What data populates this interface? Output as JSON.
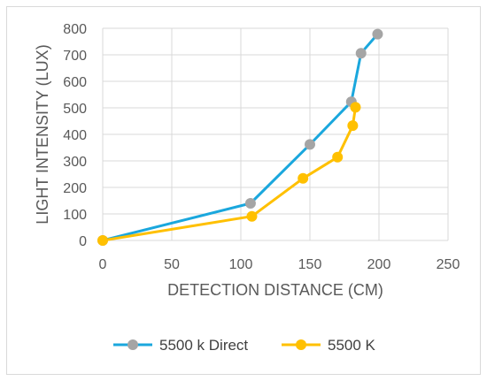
{
  "chart_data": {
    "type": "line",
    "xlabel": "DETECTION DISTANCE (CM)",
    "ylabel": "LIGHT INTENSITY (LUX)",
    "xlim": [
      0,
      250
    ],
    "ylim": [
      0,
      800
    ],
    "xticks": [
      0,
      50,
      100,
      150,
      200,
      250
    ],
    "yticks": [
      0,
      100,
      200,
      300,
      400,
      500,
      600,
      700,
      800
    ],
    "grid": "vertical and horizontal",
    "legend_position": "bottom",
    "series": [
      {
        "name": "5500 k Direct",
        "line_color": "#1aa7dd",
        "marker_color": "#a5a5a5",
        "points": [
          {
            "x": 0,
            "y": 0
          },
          {
            "x": 107,
            "y": 140
          },
          {
            "x": 150,
            "y": 362
          },
          {
            "x": 180,
            "y": 523
          },
          {
            "x": 187,
            "y": 706
          },
          {
            "x": 199,
            "y": 778
          }
        ]
      },
      {
        "name": "5500 K",
        "line_color": "#ffc000",
        "marker_color": "#ffc000",
        "points": [
          {
            "x": 0,
            "y": 0
          },
          {
            "x": 108,
            "y": 91
          },
          {
            "x": 145,
            "y": 234
          },
          {
            "x": 170,
            "y": 314
          },
          {
            "x": 181,
            "y": 433
          },
          {
            "x": 183,
            "y": 502
          }
        ]
      }
    ]
  }
}
